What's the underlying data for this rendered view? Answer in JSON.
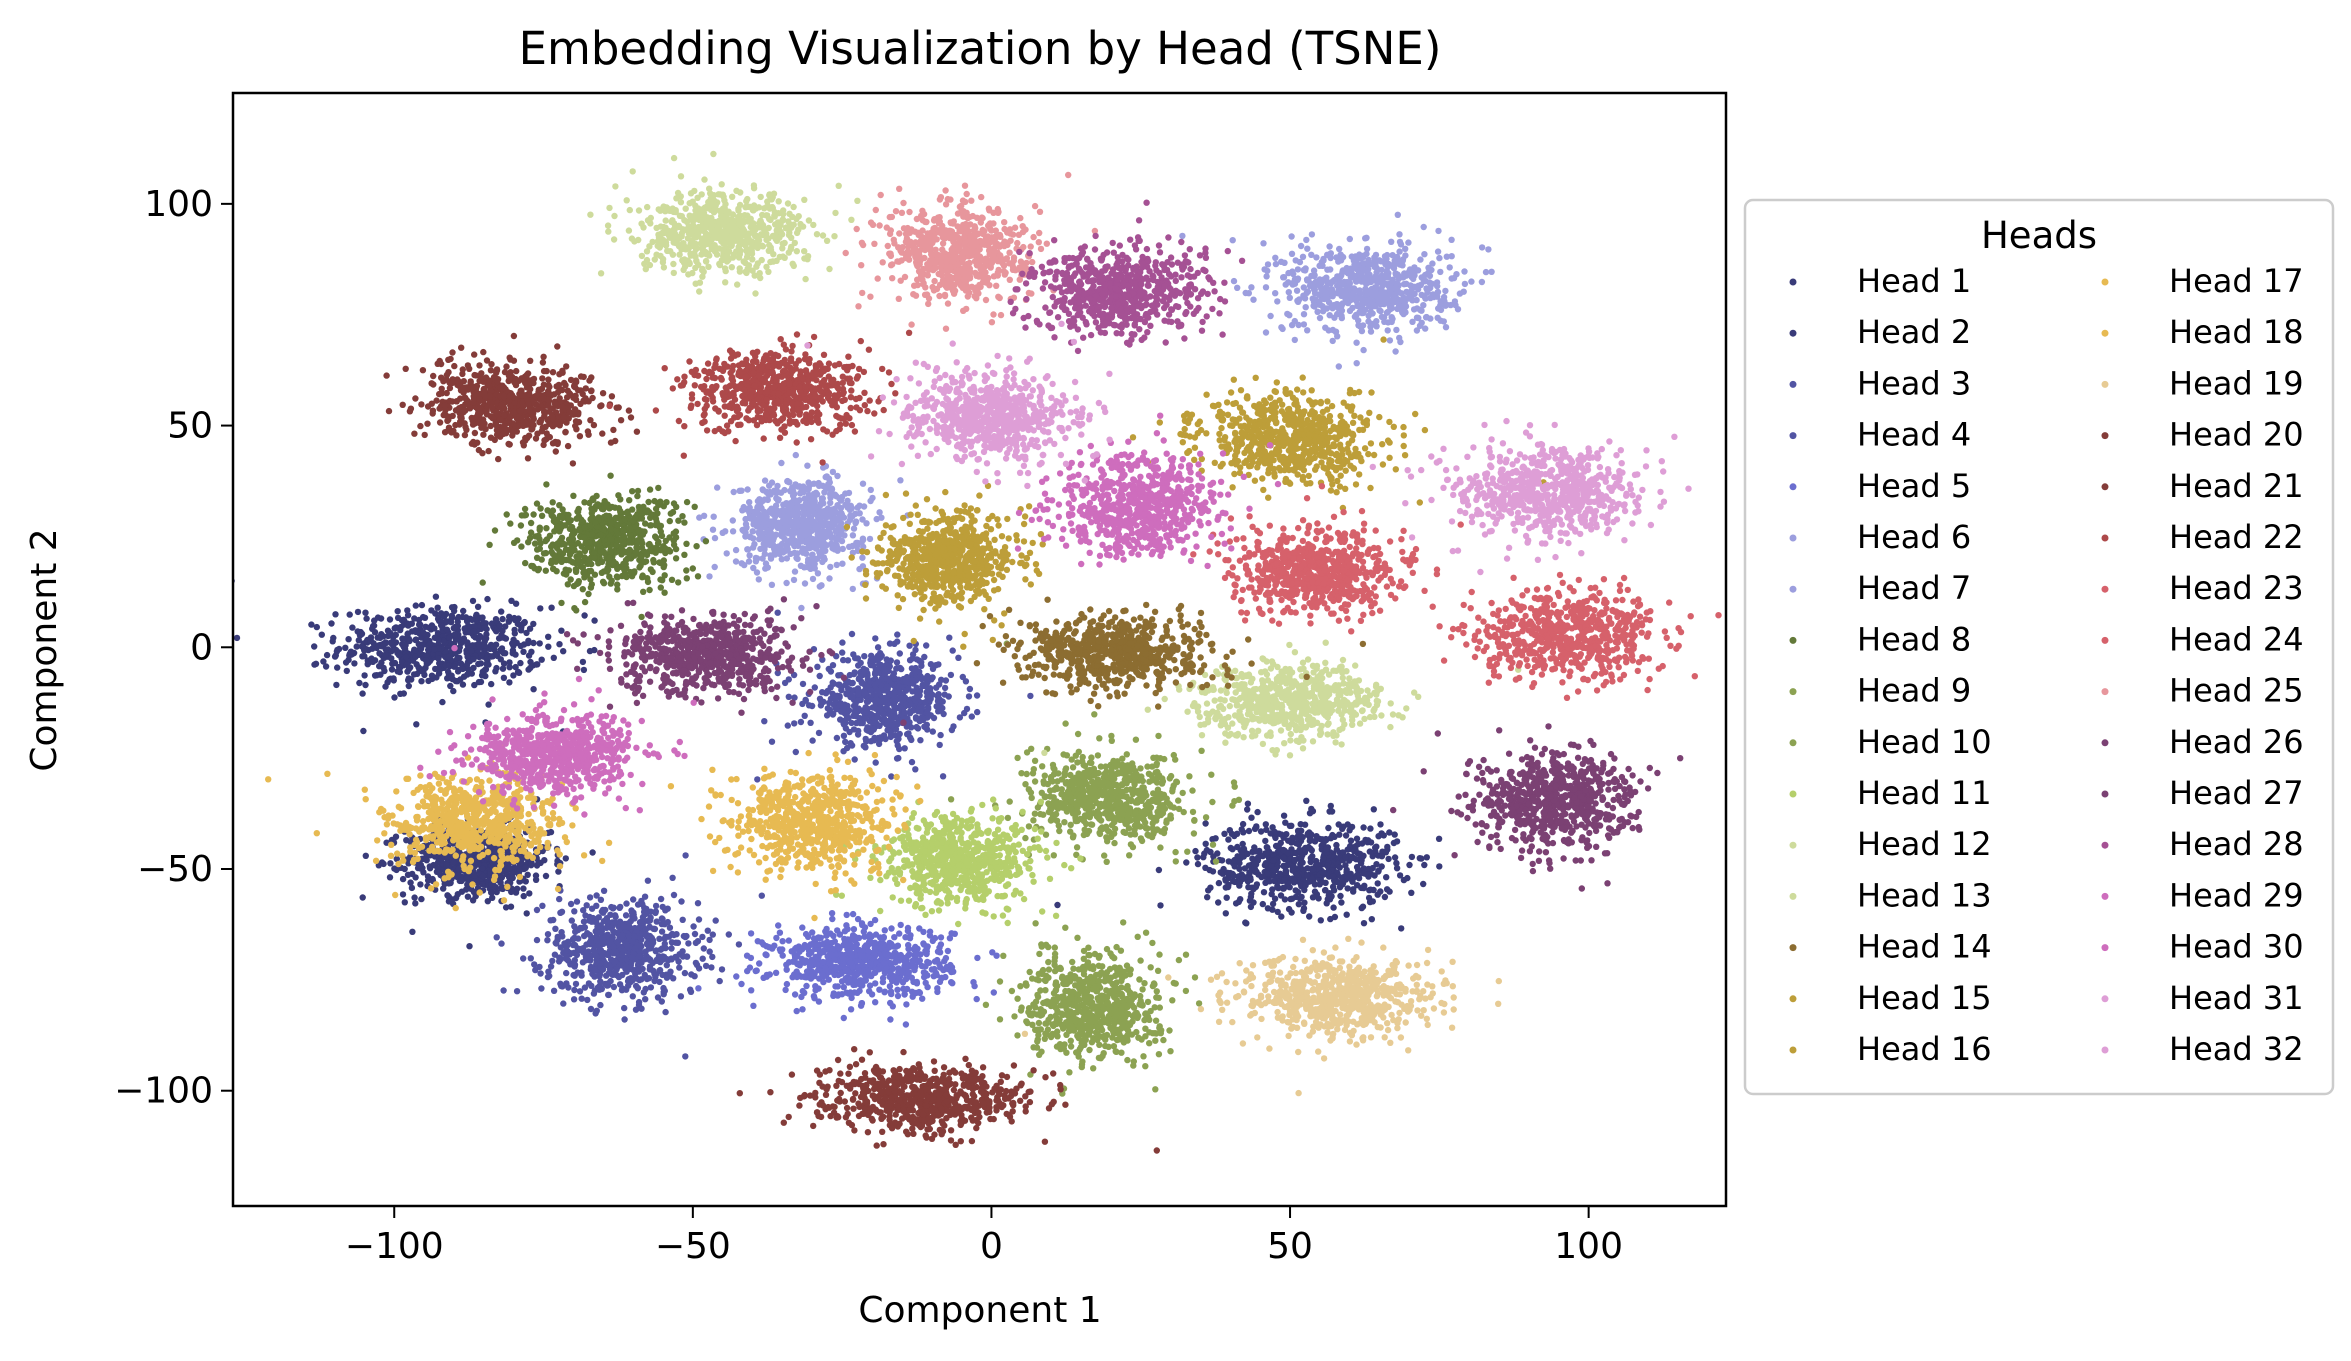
{
  "chart_data": {
    "type": "scatter",
    "title": "Embedding Visualization by Head (TSNE)",
    "xlabel": "Component 1",
    "ylabel": "Component 2",
    "xlim": [
      -127,
      123
    ],
    "ylim": [
      -126,
      125
    ],
    "xticks": [
      -100,
      -50,
      0,
      50,
      100
    ],
    "xtick_labels": [
      "−100",
      "−50",
      "0",
      "50",
      "100"
    ],
    "yticks": [
      -100,
      -50,
      0,
      50,
      100
    ],
    "ytick_labels": [
      "−100",
      "−50",
      "0",
      "50",
      "100"
    ],
    "grid": false,
    "legend": {
      "title": "Heads",
      "position": "outside-right",
      "columns": 2
    },
    "series": [
      {
        "name": "Head 1",
        "color": "#393b79",
        "clusters": [
          {
            "x": -92,
            "y": 0,
            "sx": 17,
            "sy": 9
          },
          {
            "x": -86,
            "y": -48,
            "sx": 12,
            "sy": 8
          }
        ]
      },
      {
        "name": "Head 2",
        "color": "#393b79",
        "clusters": [
          {
            "x": 52,
            "y": -49,
            "sx": 16,
            "sy": 10
          }
        ]
      },
      {
        "name": "Head 3",
        "color": "#5254a3",
        "clusters": [
          {
            "x": -62,
            "y": -68,
            "sx": 13,
            "sy": 11
          }
        ]
      },
      {
        "name": "Head 4",
        "color": "#5254a3",
        "clusters": [
          {
            "x": -18,
            "y": -12,
            "sx": 12,
            "sy": 10
          }
        ]
      },
      {
        "name": "Head 5",
        "color": "#6b6ecf",
        "clusters": [
          {
            "x": -22,
            "y": -71,
            "sx": 15,
            "sy": 8
          }
        ]
      },
      {
        "name": "Head 6",
        "color": "#9c9ede",
        "clusters": [
          {
            "x": -32,
            "y": 28,
            "sx": 11,
            "sy": 10
          }
        ]
      },
      {
        "name": "Head 7",
        "color": "#9c9ede",
        "clusters": [
          {
            "x": 63,
            "y": 81,
            "sx": 14,
            "sy": 10
          }
        ]
      },
      {
        "name": "Head 8",
        "color": "#637939",
        "clusters": [
          {
            "x": -65,
            "y": 24,
            "sx": 13,
            "sy": 10
          }
        ]
      },
      {
        "name": "Head 9",
        "color": "#8ca252",
        "clusters": [
          {
            "x": 20,
            "y": -34,
            "sx": 13,
            "sy": 10
          }
        ]
      },
      {
        "name": "Head 10",
        "color": "#8ca252",
        "clusters": [
          {
            "x": 17,
            "y": -81,
            "sx": 11,
            "sy": 12
          }
        ]
      },
      {
        "name": "Head 11",
        "color": "#b5cf6b",
        "clusters": [
          {
            "x": -5,
            "y": -48,
            "sx": 13,
            "sy": 10
          }
        ]
      },
      {
        "name": "Head 12",
        "color": "#cedb9c",
        "clusters": [
          {
            "x": -45,
            "y": 93,
            "sx": 14,
            "sy": 9
          }
        ]
      },
      {
        "name": "Head 13",
        "color": "#cedb9c",
        "clusters": [
          {
            "x": 50,
            "y": -12,
            "sx": 15,
            "sy": 8
          }
        ]
      },
      {
        "name": "Head 14",
        "color": "#8c6d31",
        "clusters": [
          {
            "x": 21,
            "y": -1,
            "sx": 15,
            "sy": 8
          }
        ]
      },
      {
        "name": "Head 15",
        "color": "#bd9e39",
        "clusters": [
          {
            "x": -7,
            "y": 20,
            "sx": 11,
            "sy": 10
          }
        ]
      },
      {
        "name": "Head 16",
        "color": "#bd9e39",
        "clusters": [
          {
            "x": 50,
            "y": 47,
            "sx": 15,
            "sy": 10
          }
        ]
      },
      {
        "name": "Head 17",
        "color": "#e7ba52",
        "clusters": [
          {
            "x": -30,
            "y": -39,
            "sx": 13,
            "sy": 11
          }
        ]
      },
      {
        "name": "Head 18",
        "color": "#e7ba52",
        "clusters": [
          {
            "x": -87,
            "y": -40,
            "sx": 14,
            "sy": 11
          }
        ]
      },
      {
        "name": "Head 19",
        "color": "#e7cb94",
        "clusters": [
          {
            "x": 58,
            "y": -79,
            "sx": 16,
            "sy": 9
          }
        ]
      },
      {
        "name": "Head 20",
        "color": "#843c39",
        "clusters": [
          {
            "x": -80,
            "y": 55,
            "sx": 15,
            "sy": 9
          }
        ]
      },
      {
        "name": "Head 21",
        "color": "#843c39",
        "clusters": [
          {
            "x": -12,
            "y": -102,
            "sx": 17,
            "sy": 7
          }
        ]
      },
      {
        "name": "Head 22",
        "color": "#ad494a",
        "clusters": [
          {
            "x": -36,
            "y": 58,
            "sx": 15,
            "sy": 9
          }
        ]
      },
      {
        "name": "Head 23",
        "color": "#d6616b",
        "clusters": [
          {
            "x": 55,
            "y": 17,
            "sx": 14,
            "sy": 9
          }
        ]
      },
      {
        "name": "Head 24",
        "color": "#d6616b",
        "clusters": [
          {
            "x": 96,
            "y": 3,
            "sx": 15,
            "sy": 10
          }
        ]
      },
      {
        "name": "Head 25",
        "color": "#e7969c",
        "clusters": [
          {
            "x": -6,
            "y": 89,
            "sx": 12,
            "sy": 11
          }
        ]
      },
      {
        "name": "Head 26",
        "color": "#7b4173",
        "clusters": [
          {
            "x": -48,
            "y": -2,
            "sx": 15,
            "sy": 9
          }
        ]
      },
      {
        "name": "Head 27",
        "color": "#7b4173",
        "clusters": [
          {
            "x": 94,
            "y": -35,
            "sx": 13,
            "sy": 11
          }
        ]
      },
      {
        "name": "Head 28",
        "color": "#a55194",
        "clusters": [
          {
            "x": 21,
            "y": 80,
            "sx": 14,
            "sy": 10
          }
        ]
      },
      {
        "name": "Head 29",
        "color": "#ce6dbd",
        "clusters": [
          {
            "x": -73,
            "y": -24,
            "sx": 14,
            "sy": 9
          }
        ]
      },
      {
        "name": "Head 30",
        "color": "#ce6dbd",
        "clusters": [
          {
            "x": 24,
            "y": 32,
            "sx": 13,
            "sy": 11
          }
        ]
      },
      {
        "name": "Head 31",
        "color": "#de9ed6",
        "clusters": [
          {
            "x": 0,
            "y": 52,
            "sx": 14,
            "sy": 10
          }
        ]
      },
      {
        "name": "Head 32",
        "color": "#de9ed6",
        "clusters": [
          {
            "x": 93,
            "y": 35,
            "sx": 15,
            "sy": 10
          }
        ]
      }
    ]
  }
}
